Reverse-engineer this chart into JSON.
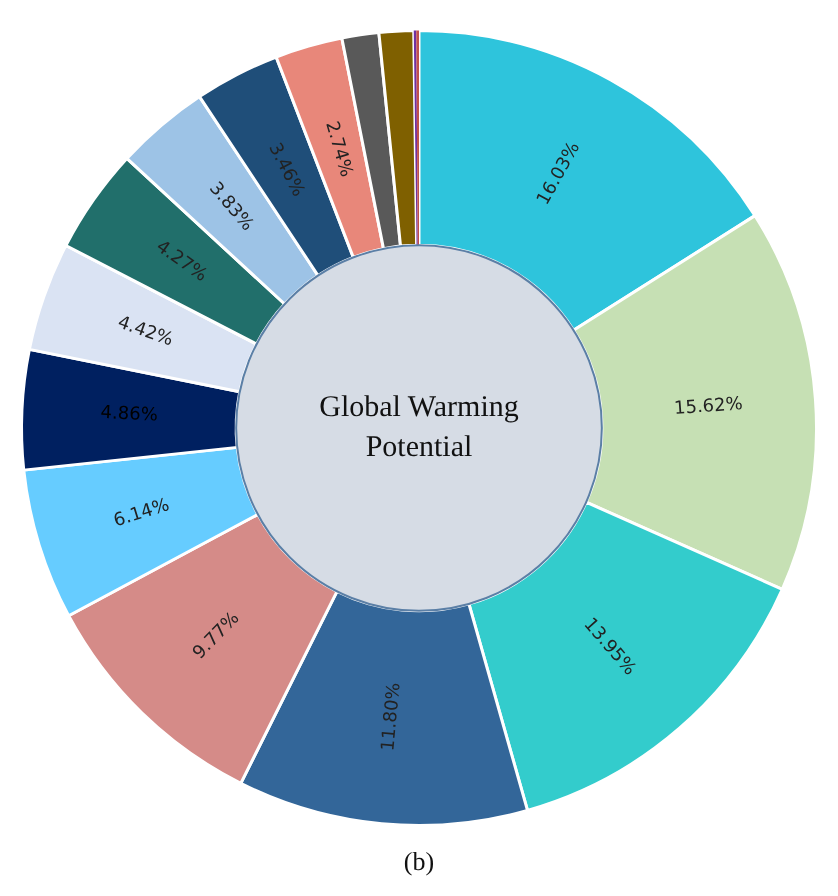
{
  "chart_data": {
    "type": "donut",
    "title": "Global Warming Potential",
    "annotations": [
      "(b)"
    ],
    "categories": [
      null,
      null,
      null,
      null,
      null,
      null,
      null,
      null,
      null,
      null,
      null,
      null,
      null,
      null,
      null,
      null
    ],
    "values": [
      16.03,
      15.62,
      13.95,
      11.8,
      9.77,
      6.14,
      4.86,
      4.42,
      4.27,
      3.83,
      3.46,
      2.74,
      1.5,
      1.4,
      0.1,
      0.11
    ],
    "value_labels": [
      "16.03%",
      "15.62%",
      "13.95%",
      "11.80%",
      "9.77%",
      "6.14%",
      "4.86%",
      "4.42%",
      "4.27%",
      "3.83%",
      "3.46%",
      "2.74%",
      null,
      null,
      null,
      null
    ],
    "colors": [
      "#2ec4dc",
      "#c6e0b4",
      "#33cccc",
      "#336699",
      "#d58b88",
      "#66ccff",
      "#002060",
      "#dae3f3",
      "#216f6b",
      "#9dc3e6",
      "#1f4e79",
      "#e8877a",
      "#595959",
      "#7f6000",
      "#7030a0",
      "#c0504d"
    ],
    "legend": false
  }
}
